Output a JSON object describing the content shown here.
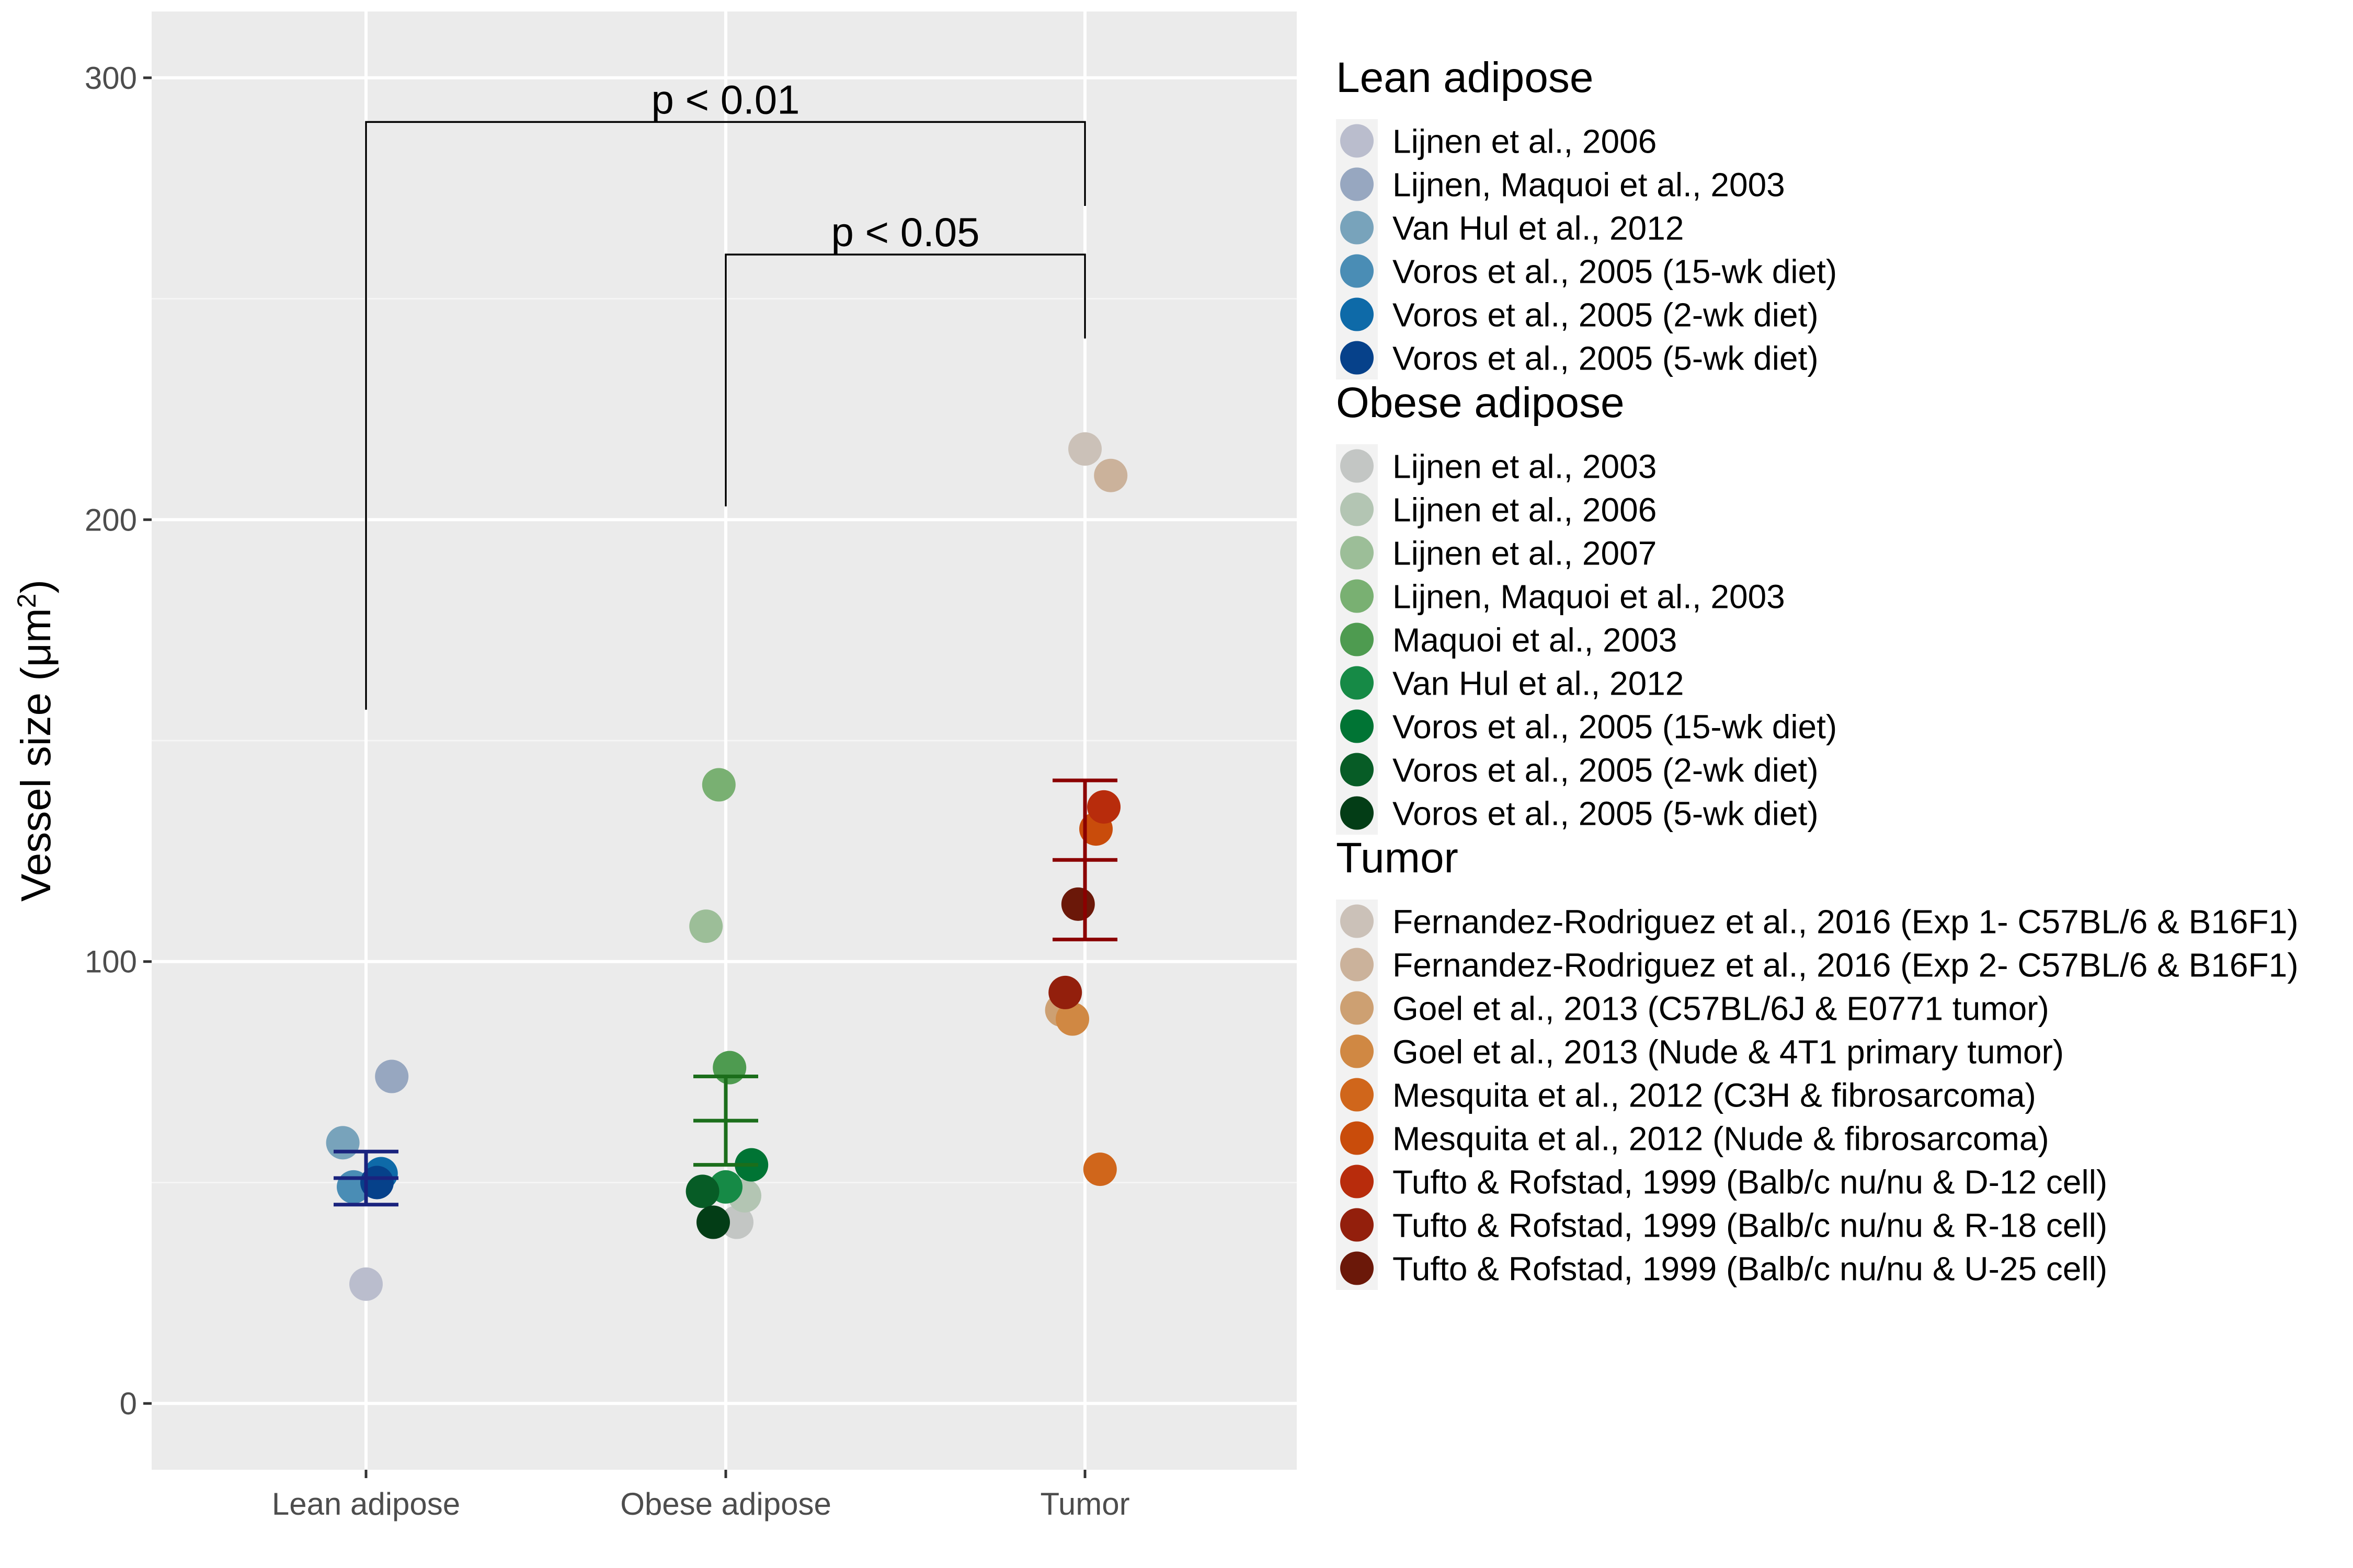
{
  "chart_data": {
    "type": "scatter",
    "title": "",
    "xlabel": "",
    "ylabel": "Vessel size (μm²)",
    "ylabel_parts": {
      "text": "Vessel size (",
      "unit": "μm",
      "sup": "2",
      "close": ")"
    },
    "categories": [
      "Lean adipose",
      "Obese adipose",
      "Tumor"
    ],
    "ylim": [
      -15,
      315
    ],
    "yticks": [
      0,
      100,
      200,
      300
    ],
    "grid": true,
    "legend_position": "right",
    "annotations": [
      {
        "label": "p < 0.01",
        "from": "Lean adipose",
        "to": "Tumor",
        "y": 290,
        "left_end": 157,
        "right_end": 271
      },
      {
        "label": "p < 0.05",
        "from": "Obese adipose",
        "to": "Tumor",
        "y": 260,
        "left_end": 203,
        "right_end": 241
      }
    ],
    "summary": [
      {
        "group": "Lean adipose",
        "mean": 51,
        "lower": 45,
        "upper": 57,
        "color": "#1a237e"
      },
      {
        "group": "Obese adipose",
        "mean": 64,
        "lower": 54,
        "upper": 74,
        "color": "#1b6e1b"
      },
      {
        "group": "Tumor",
        "mean": 123,
        "lower": 105,
        "upper": 141,
        "color": "#8b0000"
      }
    ],
    "groups": [
      {
        "name": "Lean adipose",
        "series": [
          {
            "name": "Lijnen et al., 2006",
            "color": "#babdcd",
            "points": [
              {
                "x": "Lean adipose",
                "y": 27
              }
            ]
          },
          {
            "name": "Lijnen, Maquoi et al., 2003",
            "color": "#97a7c0",
            "points": [
              {
                "x": "Lean adipose",
                "y": 74
              }
            ]
          },
          {
            "name": "Van Hul et al., 2012",
            "color": "#78a3bb",
            "points": [
              {
                "x": "Lean adipose",
                "y": 59
              }
            ]
          },
          {
            "name": "Voros et al., 2005 (15-wk diet)",
            "color": "#4a8db5",
            "points": [
              {
                "x": "Lean adipose",
                "y": 49
              }
            ]
          },
          {
            "name": "Voros et al., 2005 (2-wk diet)",
            "color": "#0e6aa8",
            "points": [
              {
                "x": "Lean adipose",
                "y": 52
              }
            ]
          },
          {
            "name": "Voros et al., 2005 (5-wk diet)",
            "color": "#06418a",
            "points": [
              {
                "x": "Lean adipose",
                "y": 50
              }
            ]
          }
        ]
      },
      {
        "name": "Obese adipose",
        "series": [
          {
            "name": "Lijnen et al., 2003",
            "color": "#c3c6c4",
            "points": [
              {
                "x": "Obese adipose",
                "y": 41
              }
            ]
          },
          {
            "name": "Lijnen et al., 2006",
            "color": "#b3c5b3",
            "points": [
              {
                "x": "Obese adipose",
                "y": 47
              }
            ]
          },
          {
            "name": "Lijnen et al., 2007",
            "color": "#9cbe98",
            "points": [
              {
                "x": "Obese adipose",
                "y": 108
              }
            ]
          },
          {
            "name": "Lijnen, Maquoi et al., 2003",
            "color": "#79b072",
            "points": [
              {
                "x": "Obese adipose",
                "y": 140
              }
            ]
          },
          {
            "name": "Maquoi et al., 2003",
            "color": "#4e9b50",
            "points": [
              {
                "x": "Obese adipose",
                "y": 76
              }
            ]
          },
          {
            "name": "Van Hul et al., 2012",
            "color": "#168a46",
            "points": [
              {
                "x": "Obese adipose",
                "y": 49
              }
            ]
          },
          {
            "name": "Voros et al., 2005 (15-wk diet)",
            "color": "#007434",
            "points": [
              {
                "x": "Obese adipose",
                "y": 54
              }
            ]
          },
          {
            "name": "Voros et al., 2005 (2-wk diet)",
            "color": "#075c26",
            "points": [
              {
                "x": "Obese adipose",
                "y": 48
              }
            ]
          },
          {
            "name": "Voros et al., 2005 (5-wk diet)",
            "color": "#033d16",
            "points": [
              {
                "x": "Obese adipose",
                "y": 41
              }
            ]
          }
        ]
      },
      {
        "name": "Tumor",
        "series": [
          {
            "name": "Fernandez-Rodriguez et al., 2016 (Exp 1- C57BL/6 & B16F1)",
            "color": "#cbc1b8",
            "points": [
              {
                "x": "Tumor",
                "y": 216
              }
            ]
          },
          {
            "name": "Fernandez-Rodriguez et al., 2016 (Exp 2- C57BL/6 & B16F1)",
            "color": "#cbb29b",
            "points": [
              {
                "x": "Tumor",
                "y": 210
              }
            ]
          },
          {
            "name": "Goel et al., 2013 (C57BL/6J & E0771 tumor)",
            "color": "#cda072",
            "points": [
              {
                "x": "Tumor",
                "y": 89
              }
            ]
          },
          {
            "name": "Goel et al., 2013 (Nude & 4T1 primary tumor)",
            "color": "#d08843",
            "points": [
              {
                "x": "Tumor",
                "y": 87
              }
            ]
          },
          {
            "name": "Mesquita et al., 2012 (C3H & fibrosarcoma)",
            "color": "#d0661b",
            "points": [
              {
                "x": "Tumor",
                "y": 53
              }
            ]
          },
          {
            "name": "Mesquita et al., 2012 (Nude & fibrosarcoma)",
            "color": "#c94c0b",
            "points": [
              {
                "x": "Tumor",
                "y": 130
              }
            ]
          },
          {
            "name": "Tufto & Rofstad, 1999 (Balb/c nu/nu & D-12 cell)",
            "color": "#b82c0c",
            "points": [
              {
                "x": "Tumor",
                "y": 135
              }
            ]
          },
          {
            "name": "Tufto & Rofstad, 1999 (Balb/c nu/nu & R-18 cell)",
            "color": "#931f0c",
            "points": [
              {
                "x": "Tumor",
                "y": 93
              }
            ]
          },
          {
            "name": "Tufto & Rofstad, 1999 (Balb/c nu/nu & U-25 cell)",
            "color": "#6b1809",
            "points": [
              {
                "x": "Tumor",
                "y": 113
              }
            ]
          }
        ]
      }
    ]
  }
}
